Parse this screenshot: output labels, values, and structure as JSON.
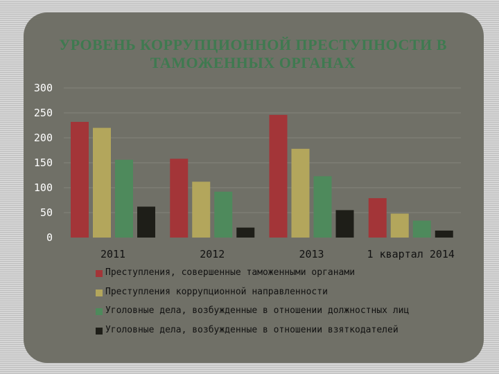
{
  "title": "УРОВЕНЬ КОРРУПЦИОННОЙ ПРЕСТУПНОСТИ В ТАМОЖЕННЫХ ОРГАНАХ",
  "chart_data": {
    "type": "bar",
    "title": "УРОВЕНЬ КОРРУПЦИОННОЙ ПРЕСТУПНОСТИ В ТАМОЖЕННЫХ ОРГАНАХ",
    "categories": [
      "2011",
      "2012",
      "2013",
      "1 квартал 2014"
    ],
    "ylim": [
      0,
      300
    ],
    "yticks": [
      "0",
      "50",
      "100",
      "150",
      "200",
      "250",
      "300"
    ],
    "grid": true,
    "legend_position": "bottom",
    "series": [
      {
        "name": "Преступления, совершенные таможенными органами",
        "color": "#a33538",
        "values": [
          232,
          158,
          246,
          79
        ]
      },
      {
        "name": "Преступления коррупционной направленности",
        "color": "#b3a65c",
        "values": [
          220,
          112,
          178,
          48
        ]
      },
      {
        "name": "Уголовные дела, возбужденные в отношении должностных лиц",
        "color": "#4e8a5c",
        "values": [
          156,
          92,
          123,
          34
        ]
      },
      {
        "name": "Уголовные дела, возбужденные в отношении взяткодателей",
        "color": "#1e1e18",
        "values": [
          62,
          20,
          55,
          14
        ]
      }
    ]
  }
}
